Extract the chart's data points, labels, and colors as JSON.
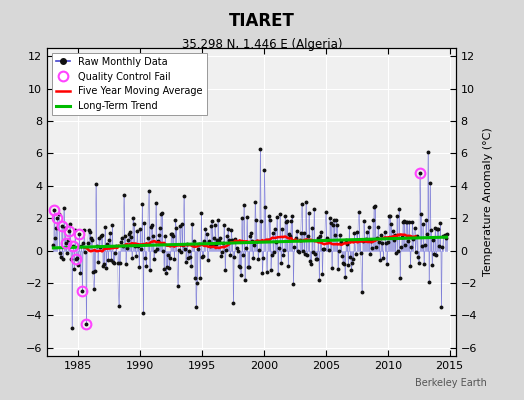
{
  "title": "TIARET",
  "subtitle": "35.298 N, 1.446 E (Algeria)",
  "credit": "Berkeley Earth",
  "ylabel": "Temperature Anomaly (°C)",
  "xlim": [
    1982.5,
    2015.5
  ],
  "ylim": [
    -6.5,
    12.5
  ],
  "yticks": [
    -6,
    -4,
    -2,
    0,
    2,
    4,
    6,
    8,
    10,
    12
  ],
  "xticks": [
    1985,
    1990,
    1995,
    2000,
    2005,
    2010,
    2015
  ],
  "bg_color": "#d8d8d8",
  "plot_bg": "#f0f0f0",
  "raw_color": "#4444cc",
  "raw_dot_color": "#111111",
  "qc_color": "#ff44ff",
  "moving_avg_color": "#ff0000",
  "trend_color": "#00bb00",
  "seed": 17
}
